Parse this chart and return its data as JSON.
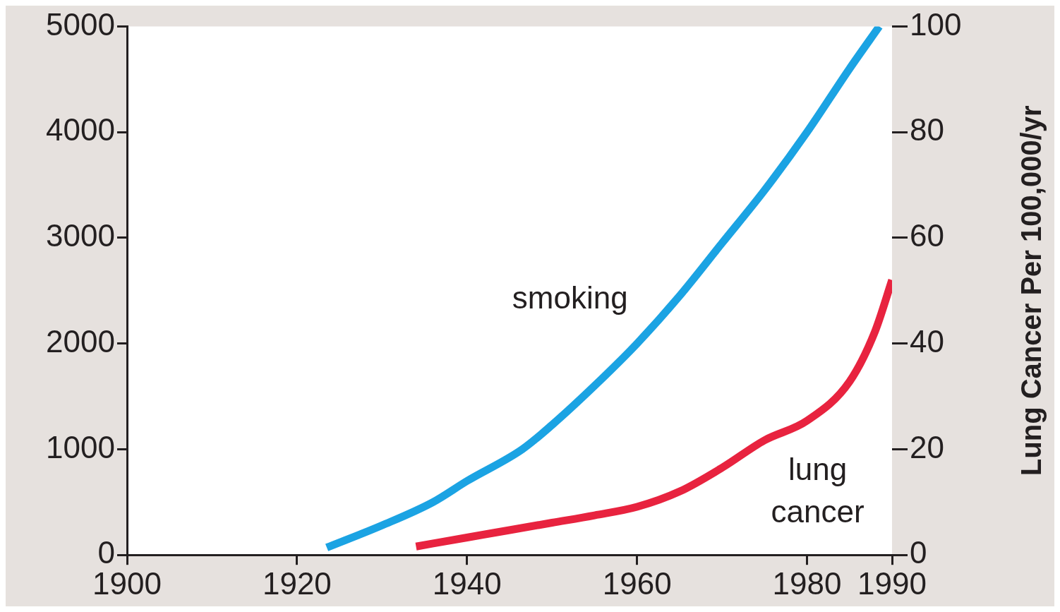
{
  "chart_data": {
    "type": "line",
    "y2label": "Lung Cancer Per 100,000/yr",
    "xlim": [
      1900,
      1990
    ],
    "xticks": [
      1900,
      1920,
      1940,
      1960,
      1980,
      1990
    ],
    "ylim": [
      0,
      5000
    ],
    "yticks": [
      0,
      1000,
      2000,
      3000,
      4000,
      5000
    ],
    "y2lim": [
      0,
      100
    ],
    "y2ticks": [
      0,
      20,
      40,
      60,
      80,
      100
    ],
    "grid": false,
    "legend": false,
    "marker": "none",
    "line_style": "solid",
    "series": [
      {
        "name": "smoking",
        "color": "#1ba3e3",
        "x": [
          1923.5,
          1930,
          1936,
          1940,
          1946.5,
          1950,
          1955,
          1960,
          1965,
          1970,
          1975,
          1980,
          1985,
          1988.5
        ],
        "values": [
          70,
          280,
          500,
          700,
          1000,
          1230,
          1600,
          2000,
          2450,
          2950,
          3450,
          4000,
          4600,
          5000
        ]
      },
      {
        "name": "lung cancer",
        "color": "#e8233f",
        "axis": "y2",
        "x": [
          1934,
          1940,
          1945,
          1950,
          1955,
          1960,
          1965,
          1970,
          1975,
          1980,
          1985,
          1988,
          1990
        ],
        "values": [
          1.6,
          3.3,
          4.7,
          6.1,
          7.5,
          9.1,
          12,
          16.5,
          21.7,
          25.4,
          32.8,
          42.3,
          52
        ]
      }
    ]
  }
}
